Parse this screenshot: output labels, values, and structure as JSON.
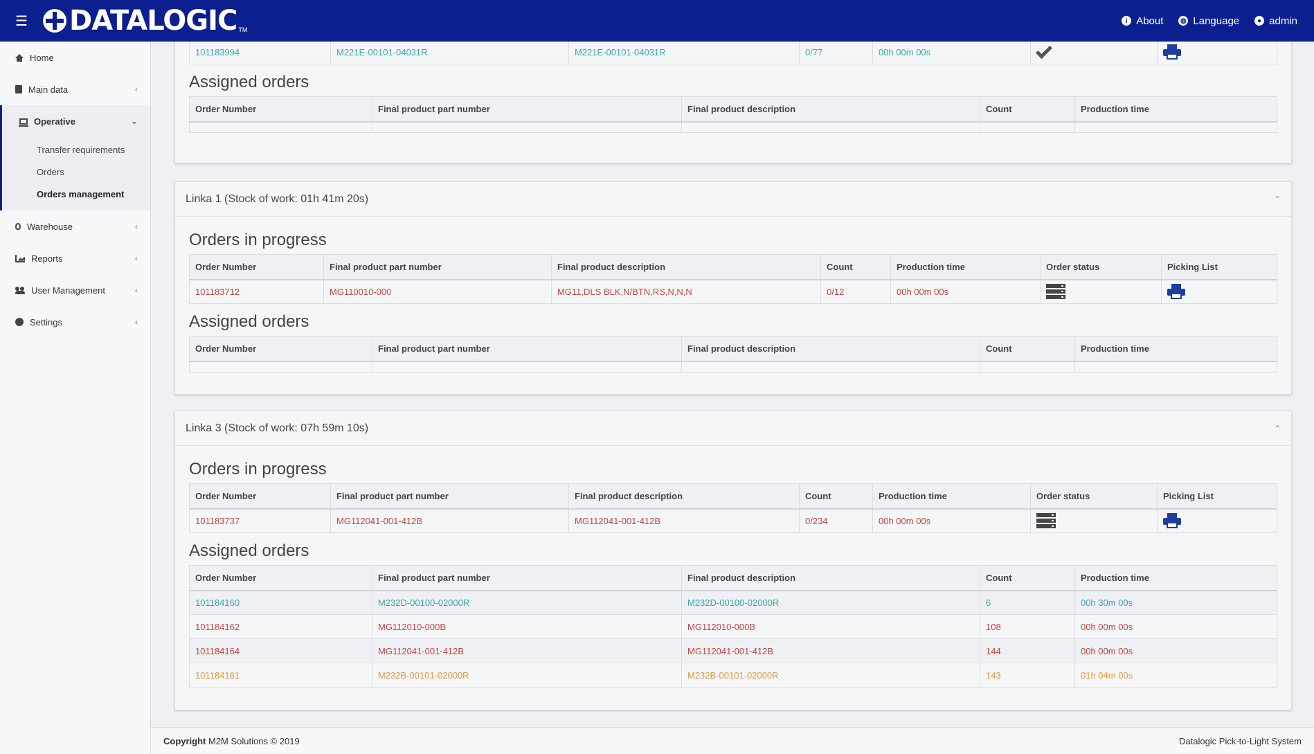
{
  "header": {
    "brand": "DATALOGIC",
    "brand_tm": "TM",
    "nav": [
      {
        "label": "About",
        "icon": "info-icon"
      },
      {
        "label": "Language",
        "icon": "globe-icon"
      },
      {
        "label": "admin",
        "icon": "user-icon"
      }
    ]
  },
  "sidebar": {
    "items": [
      {
        "label": "Home",
        "icon": "home-icon"
      },
      {
        "label": "Main data",
        "icon": "book-icon"
      },
      {
        "label": "Operative",
        "icon": "laptop-icon"
      },
      {
        "label": "Warehouse",
        "icon": "lightbulb-icon"
      },
      {
        "label": "Reports",
        "icon": "chart-icon"
      },
      {
        "label": "User Management",
        "icon": "users-icon"
      },
      {
        "label": "Settings",
        "icon": "cog-icon"
      }
    ],
    "operative_sub": [
      {
        "label": "Transfer requirements"
      },
      {
        "label": "Orders"
      },
      {
        "label": "Orders management"
      }
    ]
  },
  "columns": {
    "in_progress": [
      "Order Number",
      "Final product part number",
      "Final product description",
      "Count",
      "Production time",
      "Order status",
      "Picking List"
    ],
    "assigned": [
      "Order Number",
      "Final product part number",
      "Final product description",
      "Count",
      "Production time"
    ]
  },
  "sections": {
    "in_progress_title": "Orders in progress",
    "assigned_title": "Assigned orders"
  },
  "card0": {
    "row": {
      "order": "101183994",
      "part": "M221E-00101-04031R",
      "desc": "M221E-00101-04031R",
      "count": "0/77",
      "time": "00h 00m 00s"
    }
  },
  "card1": {
    "title": "Linka 1 (Stock of work: 01h 41m 20s)",
    "row": {
      "order": "101183712",
      "part": "MG110010-000",
      "desc": "MG11,DLS BLK,N/BTN,RS,N,N,N",
      "count": "0/12",
      "time": "00h 00m 00s"
    }
  },
  "card2": {
    "title": "Linka 3 (Stock of work: 07h 59m 10s)",
    "row": {
      "order": "101183737",
      "part": "MG112041-001-412B",
      "desc": "MG112041-001-412B",
      "count": "0/234",
      "time": "00h 00m 00s"
    },
    "assigned": [
      {
        "order": "101184160",
        "part": "M232D-00100-02000R",
        "desc": "M232D-00100-02000R",
        "count": "6",
        "time": "00h 30m 00s",
        "color": "teal"
      },
      {
        "order": "101184162",
        "part": "MG112010-000B",
        "desc": "MG112010-000B",
        "count": "108",
        "time": "00h 00m 00s",
        "color": "red"
      },
      {
        "order": "101184164",
        "part": "MG112041-001-412B",
        "desc": "MG112041-001-412B",
        "count": "144",
        "time": "00h 00m 00s",
        "color": "red"
      },
      {
        "order": "101184161",
        "part": "M232B-00101-02000R",
        "desc": "M232B-00101-02000R",
        "count": "143",
        "time": "01h 04m 00s",
        "color": "orange"
      }
    ]
  },
  "footer": {
    "copyright_bold": "Copyright",
    "copyright_rest": " M2M Solutions © 2019",
    "right": "Datalogic Pick-to-Light System"
  },
  "colors": {
    "topbar": "#0c1f8f",
    "teal": "#3aa6ad",
    "red": "#c0453f",
    "orange": "#e09a3a"
  }
}
